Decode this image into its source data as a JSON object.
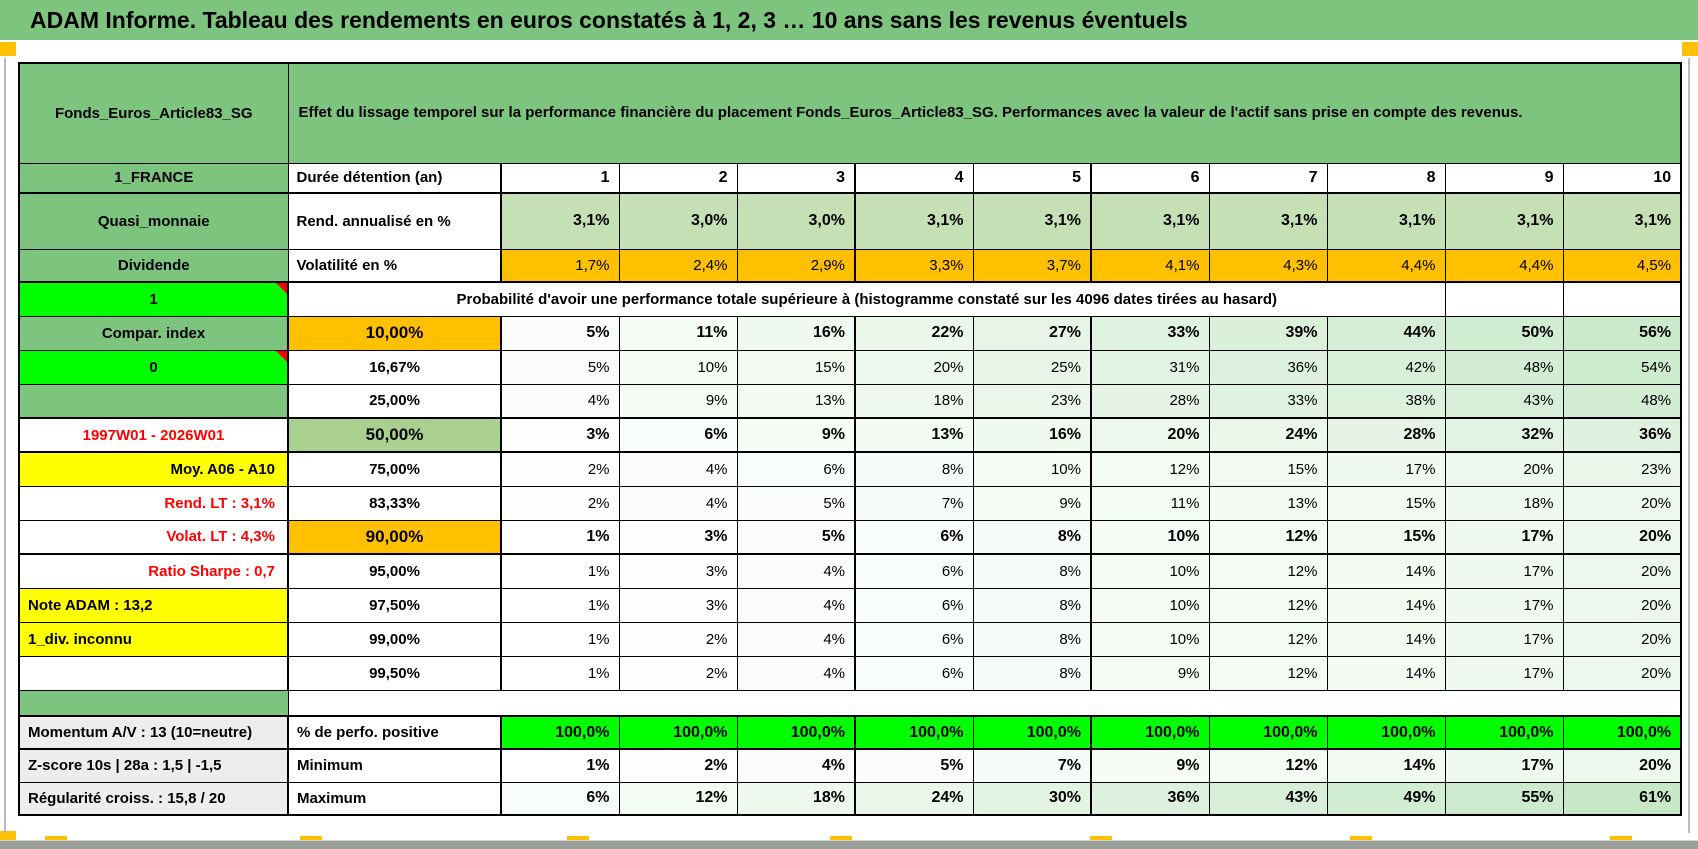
{
  "title": "ADAM Informe. Tableau des rendements en euros constatés à 1, 2, 3 … 10 ans sans les revenus éventuels",
  "colors": {
    "frame_green": "#7DC57E",
    "light_green": "#C5E0B4",
    "mid_green": "#A9D08E",
    "orange": "#FFC000",
    "bright_green": "#00FF00",
    "yellow": "#FFFF00",
    "red_text": "#FF0000",
    "gray_label": "#EDEDED",
    "scale_max_green": "#C6E8C7"
  },
  "header": {
    "fund_name": "Fonds_Euros_Article83_SG",
    "description": "Effet du lissage temporel sur la performance financière du placement Fonds_Euros_Article83_SG. Performances avec la valeur de l'actif sans prise en compte des revenus."
  },
  "years_row": {
    "left_label": "1_FRANCE",
    "header": "Durée détention (an)",
    "years": [
      "1",
      "2",
      "3",
      "4",
      "5",
      "6",
      "7",
      "8",
      "9",
      "10"
    ]
  },
  "rend_row": {
    "left_label": "Quasi_monnaie",
    "header": "Rend. annualisé en %",
    "values": [
      "3,1%",
      "3,0%",
      "3,0%",
      "3,1%",
      "3,1%",
      "3,1%",
      "3,1%",
      "3,1%",
      "3,1%",
      "3,1%"
    ]
  },
  "volat_row": {
    "left_label": "Dividende",
    "header": "Volatilité en %",
    "values": [
      "1,7%",
      "2,4%",
      "2,9%",
      "3,3%",
      "3,7%",
      "4,1%",
      "4,3%",
      "4,4%",
      "4,4%",
      "4,5%"
    ]
  },
  "proba_banner": {
    "left_label": "1",
    "text": "Probabilité d'avoir une performance totale supérieure à (histogramme constaté sur les 4096 dates tirées au hasard)"
  },
  "probability_rows": [
    {
      "left_label": "Compar. index",
      "left_style": "green",
      "threshold": "10,00%",
      "threshold_style": "orange-big",
      "bold": true,
      "values": [
        "5%",
        "11%",
        "16%",
        "22%",
        "27%",
        "33%",
        "39%",
        "44%",
        "50%",
        "56%"
      ]
    },
    {
      "left_label": "0",
      "left_style": "bright",
      "threshold": "16,67%",
      "threshold_style": "plain",
      "bold": false,
      "values": [
        "5%",
        "10%",
        "15%",
        "20%",
        "25%",
        "31%",
        "36%",
        "42%",
        "48%",
        "54%"
      ]
    },
    {
      "left_label": "",
      "left_style": "green",
      "threshold": "25,00%",
      "threshold_style": "plain",
      "bold": false,
      "values": [
        "4%",
        "9%",
        "13%",
        "18%",
        "23%",
        "28%",
        "33%",
        "38%",
        "43%",
        "48%"
      ]
    },
    {
      "left_label": "1997W01 - 2026W01",
      "left_style": "red-center",
      "threshold": "50,00%",
      "threshold_style": "midgreen-big",
      "bold": true,
      "values": [
        "3%",
        "6%",
        "9%",
        "13%",
        "16%",
        "20%",
        "24%",
        "28%",
        "32%",
        "36%"
      ]
    },
    {
      "left_label": "Moy. A06 - A10",
      "left_style": "yellow-right",
      "threshold": "75,00%",
      "threshold_style": "plain",
      "bold": false,
      "values": [
        "2%",
        "4%",
        "6%",
        "8%",
        "10%",
        "12%",
        "15%",
        "17%",
        "20%",
        "23%"
      ]
    },
    {
      "left_label": "Rend. LT :    3,1%",
      "left_style": "red-right",
      "threshold": "83,33%",
      "threshold_style": "plain",
      "bold": false,
      "values": [
        "2%",
        "4%",
        "5%",
        "7%",
        "9%",
        "11%",
        "13%",
        "15%",
        "18%",
        "20%"
      ]
    },
    {
      "left_label": "Volat. LT :    4,3%",
      "left_style": "red-right",
      "threshold": "90,00%",
      "threshold_style": "orange-big",
      "bold": true,
      "values": [
        "1%",
        "3%",
        "5%",
        "6%",
        "8%",
        "10%",
        "12%",
        "15%",
        "17%",
        "20%"
      ]
    },
    {
      "left_label": "Ratio Sharpe :    0,7",
      "left_style": "red-right",
      "threshold": "95,00%",
      "threshold_style": "plain",
      "bold": false,
      "values": [
        "1%",
        "3%",
        "4%",
        "6%",
        "8%",
        "10%",
        "12%",
        "14%",
        "17%",
        "20%"
      ]
    },
    {
      "left_label": "Note ADAM : 13,2",
      "left_style": "yellow-left",
      "threshold": "97,50%",
      "threshold_style": "plain",
      "bold": false,
      "values": [
        "1%",
        "3%",
        "4%",
        "6%",
        "8%",
        "10%",
        "12%",
        "14%",
        "17%",
        "20%"
      ]
    },
    {
      "left_label": "1_div. inconnu",
      "left_style": "yellow-left",
      "threshold": "99,00%",
      "threshold_style": "plain",
      "bold": false,
      "values": [
        "1%",
        "2%",
        "4%",
        "6%",
        "8%",
        "10%",
        "12%",
        "14%",
        "17%",
        "20%"
      ]
    },
    {
      "left_label": "",
      "left_style": "white",
      "threshold": "99,50%",
      "threshold_style": "plain",
      "bold": false,
      "values": [
        "1%",
        "2%",
        "4%",
        "6%",
        "8%",
        "9%",
        "12%",
        "14%",
        "17%",
        "20%"
      ]
    }
  ],
  "bottom_rows": [
    {
      "left_label": "Momentum A/V : 13 (10=neutre)",
      "header": "% de perfo. positive",
      "style": "bright-green",
      "values": [
        "100,0%",
        "100,0%",
        "100,0%",
        "100,0%",
        "100,0%",
        "100,0%",
        "100,0%",
        "100,0%",
        "100,0%",
        "100,0%"
      ]
    },
    {
      "left_label": "Z-score 10s | 28a : 1,5 | -1,5",
      "header": "Minimum",
      "style": "scale",
      "values": [
        "1%",
        "2%",
        "4%",
        "5%",
        "7%",
        "9%",
        "12%",
        "14%",
        "17%",
        "20%"
      ]
    },
    {
      "left_label": "Régularité croiss. : 15,8 / 20",
      "header": "Maximum",
      "style": "scale",
      "values": [
        "6%",
        "12%",
        "18%",
        "24%",
        "30%",
        "36%",
        "43%",
        "49%",
        "55%",
        "61%"
      ]
    }
  ]
}
